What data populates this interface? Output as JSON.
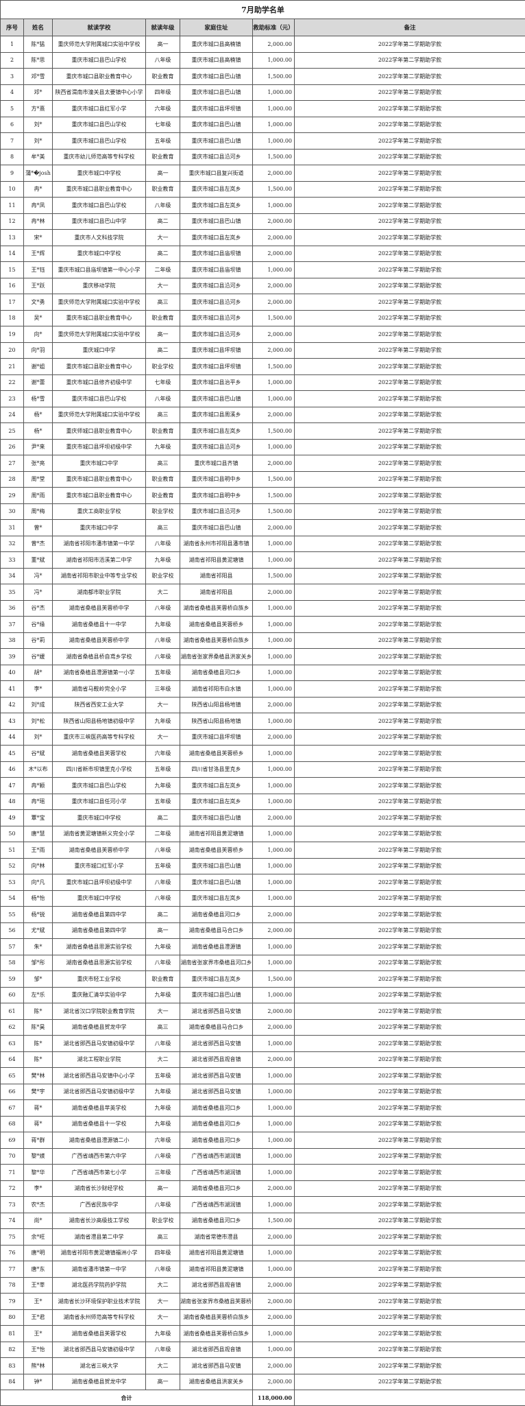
{
  "title": "7月助学名单",
  "headers": [
    "序号",
    "姓名",
    "就读学校",
    "就读年级",
    "家庭住址",
    "救助标准（元）",
    "备注"
  ],
  "rows": [
    [
      "1",
      "陈*猛",
      "重庆师范大学附属城口实验中学校",
      "高一",
      "重庆市城口县高楠镇",
      "2,000.00",
      "2022学年第二学期助学款"
    ],
    [
      "2",
      "陈*思",
      "重庆市城口县巴山学校",
      "八年级",
      "重庆市城口县高楠镇",
      "1,000.00",
      "2022学年第二学期助学款"
    ],
    [
      "3",
      "邓*雪",
      "重庆市城口县职业教育中心",
      "职业教育",
      "重庆市城口县巴山镇",
      "1,500.00",
      "2022学年第二学期助学款"
    ],
    [
      "4",
      "邓*",
      "陕西省渭南市潼关县太要镇中心小学",
      "四年级",
      "重庆市城口县巴山镇",
      "1,000.00",
      "2022学年第二学期助学款"
    ],
    [
      "5",
      "方*熹",
      "重庆市城口县红军小学",
      "六年级",
      "重庆市城口县坪坝镇",
      "1,000.00",
      "2022学年第二学期助学款"
    ],
    [
      "6",
      "刘*",
      "重庆市城口县巴山学校",
      "七年级",
      "重庆市城口县巴山镇",
      "1,000.00",
      "2022学年第二学期助学款"
    ],
    [
      "7",
      "刘*",
      "重庆市城口县巴山学校",
      "五年级",
      "重庆市城口县巴山镇",
      "1,000.00",
      "2022学年第二学期助学款"
    ],
    [
      "8",
      "牟*美",
      "重庆市幼儿师范高等专科学校",
      "职业教育",
      "重庆市城口县沿河乡",
      "1,500.00",
      "2022学年第二学期助学款"
    ],
    [
      "9",
      "蒲*�josh",
      "重庆市城口中学校",
      "高一",
      "重庆市城口县复兴街道",
      "2,000.00",
      "2022学年第二学期助学款"
    ],
    [
      "10",
      "冉*",
      "重庆市城口县职业教育中心",
      "职业教育",
      "重庆市城口县左岚乡",
      "1,500.00",
      "2022学年第二学期助学款"
    ],
    [
      "11",
      "冉*凤",
      "重庆市城口县巴山学校",
      "八年级",
      "重庆市城口县左岚乡",
      "1,000.00",
      "2022学年第二学期助学款"
    ],
    [
      "12",
      "冉*林",
      "重庆市城口县巴山中学",
      "高二",
      "重庆市城口县巴山镇",
      "2,000.00",
      "2022学年第二学期助学款"
    ],
    [
      "13",
      "宋*",
      "重庆市人文科技学院",
      "大一",
      "重庆市城口县左岚乡",
      "2,000.00",
      "2022学年第二学期助学款"
    ],
    [
      "14",
      "王*辉",
      "重庆市城口中学校",
      "高二",
      "重庆市城口县庙坝镇",
      "2,000.00",
      "2022学年第二学期助学款"
    ],
    [
      "15",
      "王*钰",
      "重庆市城口县庙坝镇第一中心小学",
      "二年级",
      "重庆市城口县庙坝镇",
      "1,000.00",
      "2022学年第二学期助学款"
    ],
    [
      "16",
      "王*跃",
      "重庆移动学院",
      "大一",
      "重庆市城口县沿河乡",
      "2,000.00",
      "2022学年第二学期助学款"
    ],
    [
      "17",
      "文*勇",
      "重庆师范大学附属城口实验中学校",
      "高三",
      "重庆市城口县沿河乡",
      "2,000.00",
      "2022学年第二学期助学款"
    ],
    [
      "18",
      "吴*",
      "重庆市城口县职业教育中心",
      "职业教育",
      "重庆市城口县沿河乡",
      "1,500.00",
      "2022学年第二学期助学款"
    ],
    [
      "19",
      "向*",
      "重庆师范大学附属城口实验中学校",
      "高一",
      "重庆市城口县沿河乡",
      "2,000.00",
      "2022学年第二学期助学款"
    ],
    [
      "20",
      "向*羽",
      "重庆城口中学",
      "高二",
      "重庆市城口县坪坝镇",
      "2,000.00",
      "2022学年第二学期助学款"
    ],
    [
      "21",
      "谢*姐",
      "重庆市城口县职业教育中心",
      "职业学校",
      "重庆市城口县坪坝镇",
      "1,500.00",
      "2022学年第二学期助学款"
    ],
    [
      "22",
      "谢*蕾",
      "重庆市城口县修齐初级中学",
      "七年级",
      "重庆市城口县治平乡",
      "1,000.00",
      "2022学年第二学期助学款"
    ],
    [
      "23",
      "杨*雪",
      "重庆市城口县巴山学校",
      "八年级",
      "重庆市城口县巴山镇",
      "1,000.00",
      "2022学年第二学期助学款"
    ],
    [
      "24",
      "杨*",
      "重庆师范大学附属城口实验中学校",
      "高三",
      "重庆市城口县周溪乡",
      "2,000.00",
      "2022学年第二学期助学款"
    ],
    [
      "25",
      "杨*",
      "重庆师城口县职业教育中心",
      "职业教育",
      "重庆市城口县左岚乡",
      "1,500.00",
      "2022学年第二学期助学款"
    ],
    [
      "26",
      "尹*来",
      "重庆市城口县坪坝初级中学",
      "九年级",
      "重庆市城口县沿河乡",
      "1,000.00",
      "2022学年第二学期助学款"
    ],
    [
      "27",
      "张*亮",
      "重庆市城口中学",
      "高三",
      "重庆市城口县齐镇",
      "2,000.00",
      "2022学年第二学期助学款"
    ],
    [
      "28",
      "周*堂",
      "重庆市城口县职业教育中心",
      "职业教育",
      "重庆市城口县明中乡",
      "1,500.00",
      "2022学年第二学期助学款"
    ],
    [
      "29",
      "周*雨",
      "重庆市城口县职业教育中心",
      "职业教育",
      "重庆市城口县明中乡",
      "1,500.00",
      "2022学年第二学期助学款"
    ],
    [
      "30",
      "周*梅",
      "重庆工商职业学校",
      "职业学校",
      "重庆市城口县沿河乡",
      "1,500.00",
      "2022学年第二学期助学款"
    ],
    [
      "31",
      "曾*",
      "重庆市城口中学",
      "高三",
      "重庆市城口县巴山镇",
      "2,000.00",
      "2022学年第二学期助学款"
    ],
    [
      "32",
      "曾*杰",
      "湖南省祁阳市潘市镇第一中学",
      "八年级",
      "湖南省永州市祁阳县潘市镇",
      "1,000.00",
      "2022学年第二学期助学款"
    ],
    [
      "33",
      "董*斌",
      "湖南省祁阳市浯溪第二中学",
      "九年级",
      "湖南省祁阳县黄泥塘镇",
      "1,000.00",
      "2022学年第二学期助学款"
    ],
    [
      "34",
      "冯*",
      "湖南省祁阳市职业中等专业学校",
      "职业学校",
      "湖南省祁阳县",
      "1,500.00",
      "2022学年第二学期助学款"
    ],
    [
      "35",
      "冯*",
      "湖南都市职业学院",
      "大二",
      "湖南省祁阳县",
      "2,000.00",
      "2022学年第二学期助学款"
    ],
    [
      "36",
      "谷*杰",
      "湖南省桑植县芙蓉桥中学",
      "八年级",
      "湖南省桑植县芙蓉桥白族乡",
      "1,000.00",
      "2022学年第二学期助学款"
    ],
    [
      "37",
      "谷*缘",
      "湖南省桑植县十一中学",
      "九年级",
      "湖南省桑植县芙蓉桥乡",
      "1,000.00",
      "2022学年第二学期助学款"
    ],
    [
      "38",
      "谷*莉",
      "湖南省桑植县芙蓉桥中学",
      "八年级",
      "湖南省桑植县芙蓉桥白族乡",
      "1,000.00",
      "2022学年第二学期助学款"
    ],
    [
      "39",
      "谷*媛",
      "湖南省桑植县桥自鸢乡学校",
      "八年级",
      "湖南省张家界桑植县洪家关乡",
      "1,000.00",
      "2022学年第二学期助学款"
    ],
    [
      "40",
      "胡*",
      "湖南省桑植县澧源镇第一小学",
      "五年级",
      "湖南省桑植县河口乡",
      "1,000.00",
      "2022学年第二学期助学款"
    ],
    [
      "41",
      "李*",
      "湖南省马鞍岭完全小学",
      "三年级",
      "湖南省祁阳市白水镇",
      "1,000.00",
      "2022学年第二学期助学款"
    ],
    [
      "42",
      "刘*成",
      "陕西省西安工业大学",
      "大一",
      "陕西省山阳县杨地镇",
      "2,000.00",
      "2022学年第二学期助学款"
    ],
    [
      "43",
      "刘*松",
      "陕西省山阳县杨地镇初级中学",
      "九年级",
      "陕西省山阳县杨地镇",
      "1,000.00",
      "2022学年第二学期助学款"
    ],
    [
      "44",
      "刘*",
      "重庆市三峡医药高等专科学校",
      "大一",
      "重庆市城口县坪坝镇",
      "2,000.00",
      "2022学年第二学期助学款"
    ],
    [
      "45",
      "谷*斌",
      "湖南省桑植县芙蓉学校",
      "六年级",
      "湖南省桑植县芙蓉桥乡",
      "1,000.00",
      "2022学年第二学期助学款"
    ],
    [
      "46",
      "木*以布",
      "四川省新市坝镇里克小学校",
      "五年级",
      "四川省甘洛县里克乡",
      "1,000.00",
      "2022学年第二学期助学款"
    ],
    [
      "47",
      "冉*颖",
      "重庆市城口县巴山学校",
      "九年级",
      "重庆市城口县左岚乡",
      "1,000.00",
      "2022学年第二学期助学款"
    ],
    [
      "48",
      "冉*瑶",
      "重庆市城口县任河小学",
      "五年级",
      "重庆市城口县左岚乡",
      "1,000.00",
      "2022学年第二学期助学款"
    ],
    [
      "49",
      "覃*宝",
      "重庆市城口中学校",
      "高二",
      "重庆市城口县巴山镇",
      "2,000.00",
      "2022学年第二学期助学款"
    ],
    [
      "50",
      "唐*慧",
      "湖南省黄泥塘镇新义完全小学",
      "二年级",
      "湖南省祁阳县黄泥塘镇",
      "1,000.00",
      "2022学年第二学期助学款"
    ],
    [
      "51",
      "王*雨",
      "湖南省桑植县芙蓉桥中学",
      "八年级",
      "湖南省桑植县芙蓉桥乡",
      "1,000.00",
      "2022学年第二学期助学款"
    ],
    [
      "52",
      "向*林",
      "重庆市城口红军小学",
      "五年级",
      "重庆市城口县巴山镇",
      "1,000.00",
      "2022学年第二学期助学款"
    ],
    [
      "53",
      "向*凡",
      "重庆市城口县坪坝初级中学",
      "八年级",
      "重庆市城口县巴山镇",
      "1,000.00",
      "2022学年第二学期助学款"
    ],
    [
      "54",
      "杨*怡",
      "重庆市城口中学校",
      "八年级",
      "重庆市城口县左岚乡",
      "1,000.00",
      "2022学年第二学期助学款"
    ],
    [
      "55",
      "杨*锐",
      "湖南省桑植县第四中学",
      "高二",
      "湖南省桑植县河口乡",
      "2,000.00",
      "2022学年第二学期助学款"
    ],
    [
      "56",
      "尤*斌",
      "湖南省桑植县第四中学",
      "高一",
      "湖南省桑植县马合口乡",
      "2,000.00",
      "2022学年第二学期助学款"
    ],
    [
      "57",
      "朱*",
      "湖南省桑植县思源实验学校",
      "九年级",
      "湖南省桑植县澧源镇",
      "1,000.00",
      "2022学年第二学期助学款"
    ],
    [
      "58",
      "邹*彤",
      "湖南省桑植县思源实验学校",
      "八年级",
      "湖南省张家界市桑植县河口乡",
      "1,000.00",
      "2022学年第二学期助学款"
    ],
    [
      "59",
      "邹*",
      "重庆市轻工业学校",
      "职业教育",
      "重庆市城口县左岚乡",
      "1,500.00",
      "2022学年第二学期助学款"
    ],
    [
      "60",
      "左*乐",
      "重庆融汇清华实验中学",
      "九年级",
      "重庆市城口县巴山镇",
      "1,000.00",
      "2022学年第二学期助学款"
    ],
    [
      "61",
      "陈*",
      "湖北省汉口学院职业教育学院",
      "大一",
      "湖北省郧西县马安镇",
      "2,000.00",
      "2022学年第二学期助学款"
    ],
    [
      "62",
      "陈*昊",
      "湖南省桑植县贺龙中学",
      "高三",
      "湖南省桑植县马合口乡",
      "2,000.00",
      "2022学年第二学期助学款"
    ],
    [
      "63",
      "陈*",
      "湖北省郧西县马安镇初级中学",
      "八年级",
      "湖北省郧西县马安镇",
      "1,000.00",
      "2022学年第二学期助学款"
    ],
    [
      "64",
      "陈*",
      "湖北工程职业学院",
      "大二",
      "湖北省郧西县观音镇",
      "2,000.00",
      "2022学年第二学期助学款"
    ],
    [
      "65",
      "樊*林",
      "湖北省郧西县马安镇中心小学",
      "五年级",
      "湖北省郧西县马安镇",
      "1,000.00",
      "2022学年第二学期助学款"
    ],
    [
      "66",
      "樊*宇",
      "湖北省郧西县马安镇初级中学",
      "九年级",
      "湖北省郧西县马安镇",
      "1,000.00",
      "2022学年第二学期助学款"
    ],
    [
      "67",
      "蒋*",
      "湖南省桑植县苹英学校",
      "九年级",
      "湖南省桑植县河口乡",
      "1,000.00",
      "2022学年第二学期助学款"
    ],
    [
      "68",
      "蒋*",
      "湖南省桑植县十一学校",
      "九年级",
      "湖南省桑植县河口乡",
      "1,000.00",
      "2022学年第二学期助学款"
    ],
    [
      "69",
      "蒋*群",
      "湖南省桑植县澧源镇二小",
      "六年级",
      "湖南省桑植县河口乡",
      "1,000.00",
      "2022学年第二学期助学款"
    ],
    [
      "70",
      "黎*媄",
      "广西省靖西市第六中学",
      "八年级",
      "广西省靖西市湖润镇",
      "1,000.00",
      "2022学年第二学期助学款"
    ],
    [
      "71",
      "黎*华",
      "广西省靖西市第七小学",
      "三年级",
      "广西省靖西市湖润镇",
      "1,000.00",
      "2022学年第二学期助学款"
    ],
    [
      "72",
      "李*",
      "湖南省长沙财经学校",
      "高一",
      "湖南省桑植县河口乡",
      "2,000.00",
      "2022学年第二学期助学款"
    ],
    [
      "73",
      "农*杰",
      "广西省民族中学",
      "八年级",
      "广西省靖西市湖润镇",
      "1,000.00",
      "2022学年第二学期助学款"
    ],
    [
      "74",
      "尚*",
      "湖南省长沙高级技工学校",
      "职业学校",
      "湖南省桑植县河口乡",
      "1,500.00",
      "2022学年第二学期助学款"
    ],
    [
      "75",
      "余*旺",
      "湖南省澧县第二中学",
      "高三",
      "湖南省常德市澧县",
      "2,000.00",
      "2022学年第二学期助学款"
    ],
    [
      "76",
      "唐*明",
      "湖南省祁阳市黄泥塘镇福洲小学",
      "四年级",
      "湖南省祁阳县黄泥塘镇",
      "1,000.00",
      "2022学年第二学期助学款"
    ],
    [
      "77",
      "唐*东",
      "湖南省潘市镇第一中学",
      "八年级",
      "湖南省祁阳县黄泥塘镇",
      "1,000.00",
      "2022学年第二学期助学款"
    ],
    [
      "78",
      "王*莘",
      "湖北医药学院药护学院",
      "大二",
      "湖北省郧西县观音镇",
      "2,000.00",
      "2022学年第二学期助学款"
    ],
    [
      "79",
      "王*",
      "湖南省长沙环境保护职业技术学院",
      "大一",
      "湖南省张家界市桑植县芙蓉桥白族乡",
      "2,000.00",
      "2022学年第二学期助学款"
    ],
    [
      "80",
      "王*君",
      "湖南省永州师范高等专科学校",
      "大一",
      "湖南省桑植县芙蓉桥白族乡",
      "2,000.00",
      "2022学年第二学期助学款"
    ],
    [
      "81",
      "王*",
      "湖南省桑植县芙蓉学校",
      "九年级",
      "湖南省桑植县芙蓉桥白族乡",
      "1,000.00",
      "2022学年第二学期助学款"
    ],
    [
      "82",
      "王*怡",
      "湖北省郧西县马安镇初级中学",
      "八年级",
      "湖北省郧西县观音镇",
      "1,000.00",
      "2022学年第二学期助学款"
    ],
    [
      "83",
      "熊*林",
      "湖北省三峡大学",
      "大二",
      "湖北省郧西县马安镇",
      "2,000.00",
      "2022学年第二学期助学款"
    ],
    [
      "84",
      "钟*",
      "湖南省桑植县贺龙中学",
      "高一",
      "湖南省桑植县洪家关乡",
      "2,000.00",
      "2022学年第二学期助学款"
    ]
  ],
  "total": {
    "label": "合计",
    "amount": "118,000.00"
  }
}
